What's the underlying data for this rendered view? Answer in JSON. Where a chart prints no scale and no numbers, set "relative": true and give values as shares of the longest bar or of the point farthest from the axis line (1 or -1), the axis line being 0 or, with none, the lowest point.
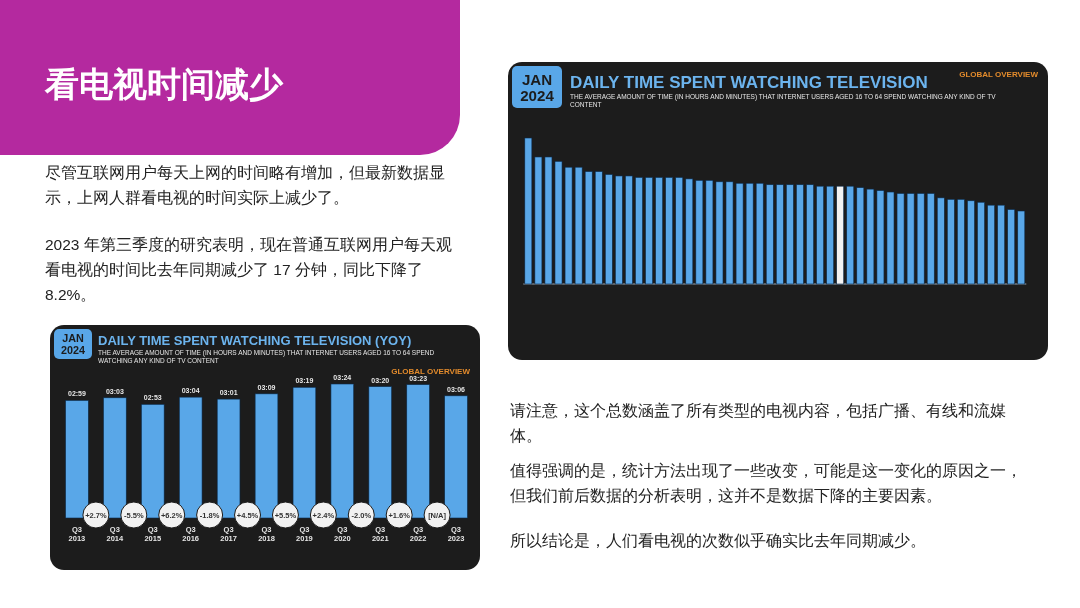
{
  "chart_data": [
    {
      "type": "other",
      "title": "看电视时间减少",
      "annotations": [
        "尽管互联网用户每天上网的时间略有增加，但最新数据显示，上网人群看电视的时间实际上减少了。",
        "2023 年第三季度的研究表明，现在普通互联网用户每天观看电视的时间比去年同期减少了 17 分钟，同比下降了 8.2%。",
        "请注意，这个总数涵盖了所有类型的电视内容，包括广播、有线和流媒体。",
        "值得强调的是，统计方法出现了一些改变，可能是这一变化的原因之一，但我们前后数据的分析表明，这并不是数据下降的主要因素。",
        "所以结论是，人们看电视的次数似乎确实比去年同期减少。"
      ]
    },
    {
      "type": "bar",
      "title": "DAILY TIME SPENT WATCHING TELEVISION (YOY)",
      "subtitle": "THE AVERAGE AMOUNT OF TIME (IN HOURS AND MINUTES) THAT INTERNET USERS AGED 16 TO 64 SPEND WATCHING ANY KIND OF TV CONTENT",
      "categories": [
        "Q3 2013",
        "Q3 2014",
        "Q3 2015",
        "Q3 2016",
        "Q3 2017",
        "Q3 2018",
        "Q3 2019",
        "Q3 2020",
        "Q3 2021",
        "Q3 2022",
        "Q3 2023"
      ],
      "values": [
        179,
        183,
        173,
        184,
        181,
        189,
        199,
        204,
        200,
        203,
        186
      ],
      "value_labels": [
        "02:59",
        "03:03",
        "02:53",
        "03:04",
        "03:01",
        "03:09",
        "03:19",
        "03:24",
        "03:20",
        "03:23",
        "03:06"
      ],
      "color": "#59a7e8",
      "annotations": [
        "JAN 2024",
        "GLOBAL OVERVIEW",
        "+2.7%",
        "-5.5%",
        "+6.2%",
        "-1.8%",
        "+4.5%",
        "+5.5%",
        "+2.4%",
        "-2.0%",
        "+1.6%",
        "[N/A]"
      ]
    },
    {
      "type": "bar",
      "relative": true,
      "title": "DAILY TIME SPENT WATCHING TELEVISION",
      "subtitle": "THE AVERAGE AMOUNT OF TIME (IN HOURS AND MINUTES) THAT INTERNET USERS AGED 16 TO 64 SPEND WATCHING ANY KIND OF TV CONTENT",
      "categories": [
        null,
        null,
        null,
        null,
        null,
        null,
        null,
        null,
        null,
        null,
        null,
        null,
        null,
        null,
        null,
        null,
        null,
        null,
        null,
        null,
        null,
        null,
        null,
        null,
        null,
        null,
        null,
        null,
        null,
        null,
        null,
        null,
        null,
        null,
        null,
        null,
        null,
        null,
        null,
        null,
        null,
        null,
        null,
        null,
        null,
        null,
        null,
        null,
        null,
        null
      ],
      "values": [
        1.0,
        0.87,
        0.87,
        0.84,
        0.8,
        0.8,
        0.77,
        0.77,
        0.75,
        0.74,
        0.74,
        0.73,
        0.73,
        0.73,
        0.73,
        0.73,
        0.72,
        0.71,
        0.71,
        0.7,
        0.7,
        0.69,
        0.69,
        0.69,
        0.68,
        0.68,
        0.68,
        0.68,
        0.68,
        0.67,
        0.67,
        0.67,
        0.67,
        0.66,
        0.65,
        0.64,
        0.63,
        0.62,
        0.62,
        0.62,
        0.62,
        0.59,
        0.58,
        0.58,
        0.57,
        0.56,
        0.54,
        0.54,
        0.51,
        0.5
      ],
      "colors": [
        "#59a7e8",
        "#59a7e8",
        "#59a7e8",
        "#59a7e8",
        "#59a7e8",
        "#59a7e8",
        "#59a7e8",
        "#59a7e8",
        "#59a7e8",
        "#59a7e8",
        "#59a7e8",
        "#59a7e8",
        "#59a7e8",
        "#59a7e8",
        "#59a7e8",
        "#59a7e8",
        "#59a7e8",
        "#59a7e8",
        "#59a7e8",
        "#59a7e8",
        "#59a7e8",
        "#59a7e8",
        "#59a7e8",
        "#59a7e8",
        "#59a7e8",
        "#59a7e8",
        "#59a7e8",
        "#59a7e8",
        "#59a7e8",
        "#59a7e8",
        "#59a7e8",
        "#f2f2f2",
        "#59a7e8",
        "#59a7e8",
        "#59a7e8",
        "#59a7e8",
        "#59a7e8",
        "#59a7e8",
        "#59a7e8",
        "#59a7e8",
        "#59a7e8",
        "#59a7e8",
        "#59a7e8",
        "#59a7e8",
        "#59a7e8",
        "#59a7e8",
        "#59a7e8",
        "#59a7e8",
        "#59a7e8",
        "#59a7e8"
      ],
      "annotations": [
        "JAN 2024",
        "GLOBAL OVERVIEW"
      ]
    }
  ]
}
